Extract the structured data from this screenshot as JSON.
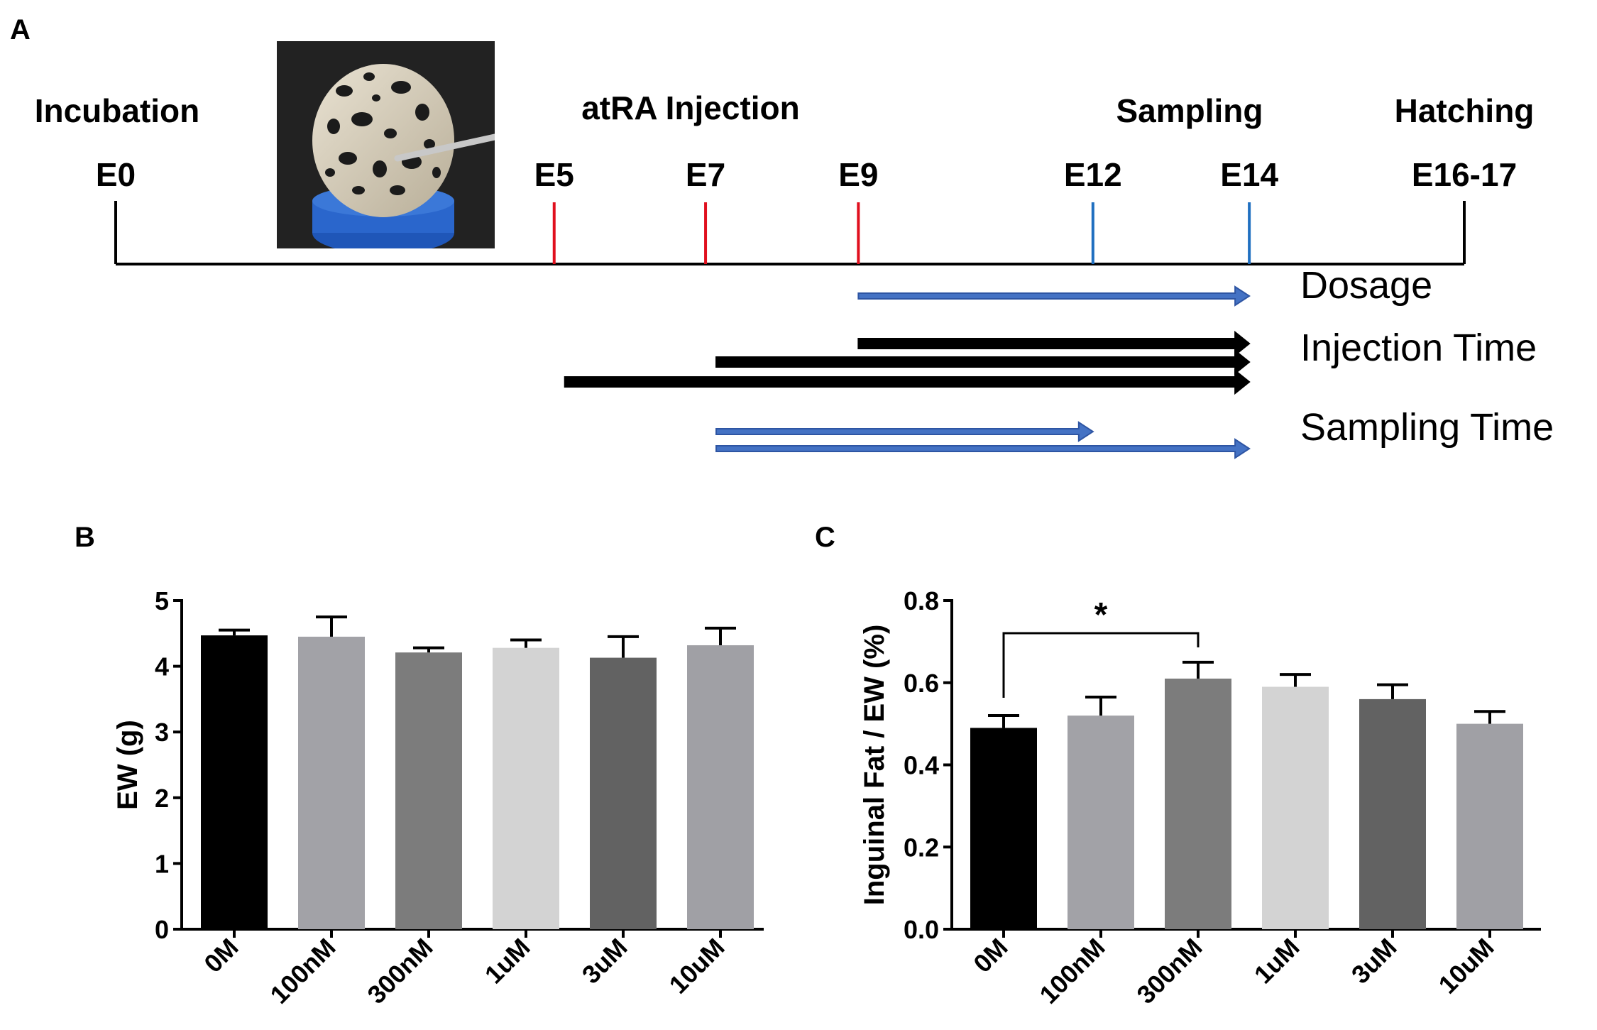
{
  "panels": {
    "a": "A",
    "b": "B",
    "c": "C"
  },
  "timeline": {
    "stages": {
      "incubation": "Incubation",
      "injection": "atRA Injection",
      "sampling": "Sampling",
      "hatching": "Hatching"
    },
    "days": [
      {
        "label": "E0",
        "day": 0,
        "type": "start"
      },
      {
        "label": "E5",
        "day": 5,
        "type": "injection"
      },
      {
        "label": "E7",
        "day": 7,
        "type": "injection"
      },
      {
        "label": "E9",
        "day": 9,
        "type": "injection"
      },
      {
        "label": "E12",
        "day": 12,
        "type": "sampling"
      },
      {
        "label": "E14",
        "day": 14,
        "type": "sampling"
      },
      {
        "label": "E16-17",
        "day": 16.5,
        "type": "end"
      }
    ],
    "experiments": [
      {
        "label": "Dosage",
        "arrows": [
          {
            "from": 9,
            "to": 14
          }
        ],
        "color": "#4472c4"
      },
      {
        "label": "Injection Time",
        "arrows": [
          {
            "from": 9,
            "to": 14
          },
          {
            "from": 7,
            "to": 14
          },
          {
            "from": 5,
            "to": 14
          }
        ],
        "color": "#000000"
      },
      {
        "label": "Sampling Time",
        "arrows": [
          {
            "from": 7,
            "to": 12
          },
          {
            "from": 7,
            "to": 14
          }
        ],
        "color": "#4472c4"
      }
    ],
    "colors": {
      "injection": "#e0101e",
      "sampling": "#1f6fc0",
      "axis": "#000000"
    }
  },
  "chart_data": [
    {
      "type": "bar",
      "panel": "B",
      "categories": [
        "0M",
        "100nM",
        "300nM",
        "1uM",
        "3uM",
        "10uM"
      ],
      "values": [
        4.47,
        4.45,
        4.21,
        4.28,
        4.13,
        4.32
      ],
      "errors": [
        0.08,
        0.3,
        0.07,
        0.12,
        0.32,
        0.26
      ],
      "colors": [
        "#000000",
        "#a2a2a7",
        "#7c7c7c",
        "#d3d3d3",
        "#626262",
        "#a0a0a5"
      ],
      "title": "",
      "xlabel": "",
      "ylabel": "EW (g)",
      "ylim": [
        0,
        5
      ],
      "yticks": [
        "0",
        "1",
        "2",
        "3",
        "4",
        "5"
      ],
      "significance": []
    },
    {
      "type": "bar",
      "panel": "C",
      "categories": [
        "0M",
        "100nM",
        "300nM",
        "1uM",
        "3uM",
        "10uM"
      ],
      "values": [
        0.49,
        0.52,
        0.61,
        0.59,
        0.56,
        0.5
      ],
      "errors": [
        0.03,
        0.045,
        0.04,
        0.03,
        0.035,
        0.03
      ],
      "colors": [
        "#000000",
        "#a2a2a7",
        "#7c7c7c",
        "#d3d3d3",
        "#626262",
        "#a0a0a5"
      ],
      "title": "",
      "xlabel": "",
      "ylabel": "Inguinal Fat / EW (%)",
      "ylim": [
        0,
        0.8
      ],
      "yticks": [
        "0.0",
        "0.2",
        "0.4",
        "0.6",
        "0.8"
      ],
      "significance": [
        {
          "from": 0,
          "to": 2,
          "label": "*"
        }
      ]
    }
  ]
}
